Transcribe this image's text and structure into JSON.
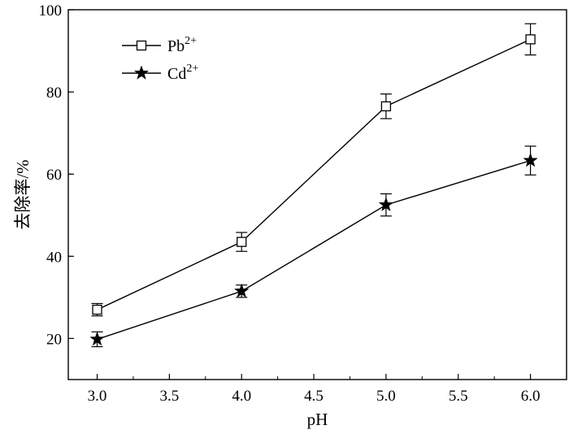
{
  "chart_data": {
    "type": "line",
    "title": "",
    "xlabel": "pH",
    "ylabel": "去除率/%",
    "xlim": [
      2.8,
      6.25
    ],
    "ylim": [
      10,
      100
    ],
    "x_ticks": [
      3.0,
      3.5,
      4.0,
      4.5,
      5.0,
      5.5,
      6.0
    ],
    "x_tick_labels": [
      "3.0",
      "3.5",
      "4.0",
      "4.5",
      "5.0",
      "5.5",
      "6.0"
    ],
    "y_ticks": [
      20,
      40,
      60,
      80,
      100
    ],
    "y_tick_labels": [
      "20",
      "40",
      "60",
      "80",
      "100"
    ],
    "grid": false,
    "legend_position": "top-left",
    "series": [
      {
        "name_base": "Pb",
        "name_sup": "2+",
        "marker": "open-square",
        "color": "#000000",
        "x": [
          3.0,
          4.0,
          5.0,
          6.0
        ],
        "y": [
          27.0,
          43.5,
          76.5,
          92.8
        ],
        "yerr": [
          1.5,
          2.3,
          3.0,
          3.8
        ]
      },
      {
        "name_base": "Cd",
        "name_sup": "2+",
        "marker": "filled-star",
        "color": "#000000",
        "x": [
          3.0,
          4.0,
          5.0,
          6.0
        ],
        "y": [
          19.8,
          31.5,
          52.5,
          63.3
        ],
        "yerr": [
          1.8,
          1.5,
          2.7,
          3.5
        ]
      }
    ]
  }
}
